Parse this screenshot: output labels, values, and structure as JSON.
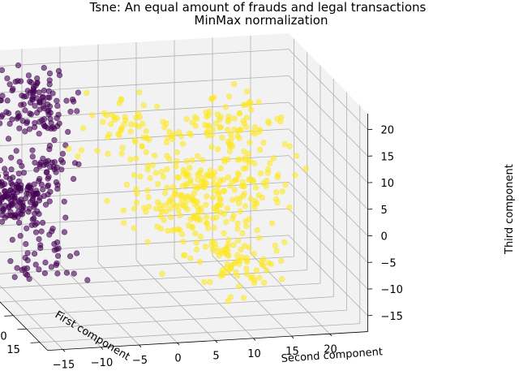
{
  "chart_data": {
    "type": "scatter",
    "projection": "3d",
    "title": "Tsne: An equal amount of frauds and legal transactions",
    "subtitle": "MinMax normalization",
    "xlabel": "First component",
    "ylabel": "Second component",
    "zlabel": "Third component",
    "xlim": [
      -12,
      18
    ],
    "ylim": [
      -17,
      25
    ],
    "zlim": [
      -18,
      23
    ],
    "xticks": [
      "−10",
      "−5",
      "0",
      "5",
      "10",
      "15"
    ],
    "yticks": [
      "−15",
      "−10",
      "−5",
      "0",
      "5",
      "10",
      "15",
      "20"
    ],
    "zticks": [
      "−15",
      "−10",
      "−5",
      "0",
      "5",
      "10",
      "15",
      "20"
    ],
    "grid": true,
    "colors": {
      "fraud": "#440154",
      "legal": "#fde725",
      "pane": "#f2f2f2"
    },
    "clusters": [
      {
        "class": "fraud",
        "center": [
          -2,
          -12,
          18
        ],
        "spread": [
          2.6,
          2.6,
          3.0
        ],
        "count": 120
      },
      {
        "class": "fraud",
        "center": [
          0,
          -15,
          2
        ],
        "spread": [
          3.2,
          2.4,
          3.2
        ],
        "count": 180
      },
      {
        "class": "fraud",
        "center": [
          4,
          -12,
          -8
        ],
        "spread": [
          2.2,
          2.2,
          2.2
        ],
        "count": 40
      },
      {
        "class": "fraud",
        "center": [
          -2,
          -9,
          6
        ],
        "spread": [
          1.8,
          1.8,
          2.2
        ],
        "count": 30
      },
      {
        "class": "legal",
        "center": [
          -2,
          0,
          12
        ],
        "spread": [
          2.5,
          3.5,
          3.0
        ],
        "count": 60
      },
      {
        "class": "legal",
        "center": [
          2,
          8,
          0
        ],
        "spread": [
          3.0,
          4.0,
          4.0
        ],
        "count": 200
      },
      {
        "class": "legal",
        "center": [
          6,
          12,
          -10
        ],
        "spread": [
          2.5,
          3.0,
          2.5
        ],
        "count": 80
      },
      {
        "class": "legal",
        "center": [
          -6,
          14,
          10
        ],
        "spread": [
          2.0,
          3.0,
          3.0
        ],
        "count": 80
      },
      {
        "class": "legal",
        "center": [
          2,
          16,
          4
        ],
        "spread": [
          2.0,
          3.0,
          4.0
        ],
        "count": 60
      }
    ]
  }
}
